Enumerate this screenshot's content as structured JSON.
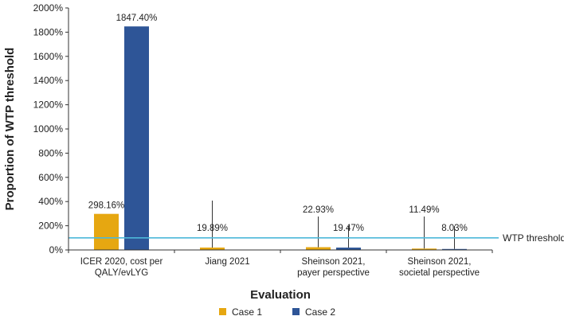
{
  "chart_data": {
    "type": "bar",
    "ylabel": "Proportion of WTP threshold",
    "xlabel": "Evaluation",
    "ylim": [
      0,
      2000
    ],
    "yticks": [
      0,
      200,
      400,
      600,
      800,
      1000,
      1200,
      1400,
      1600,
      1800,
      2000
    ],
    "ytick_labels": [
      "0%",
      "200%",
      "400%",
      "600%",
      "800%",
      "1000%",
      "1200%",
      "1400%",
      "1600%",
      "1800%",
      "2000%"
    ],
    "categories": [
      [
        "ICER 2020, cost per",
        "QALY/evLYG"
      ],
      [
        "Jiang 2021"
      ],
      [
        "Sheinson 2021,",
        "payer perspective"
      ],
      [
        "Sheinson 2021,",
        "societal perspective"
      ]
    ],
    "series": [
      {
        "name": "Case 1",
        "color": "#E6A711",
        "values": [
          298.16,
          19.89,
          22.93,
          11.49
        ],
        "labels": [
          "298.16%",
          "19.89%",
          "22.93%",
          "11.49%"
        ]
      },
      {
        "name": "Case 2",
        "color": "#2E5597",
        "values": [
          1847.4,
          null,
          19.47,
          8.03
        ],
        "labels": [
          "1847.40%",
          "",
          "19.47%",
          "8.03%"
        ]
      }
    ],
    "reference_line": {
      "value": 100,
      "label": "WTP threshold",
      "color": "#4DB8D9"
    },
    "legend_position": "bottom"
  }
}
